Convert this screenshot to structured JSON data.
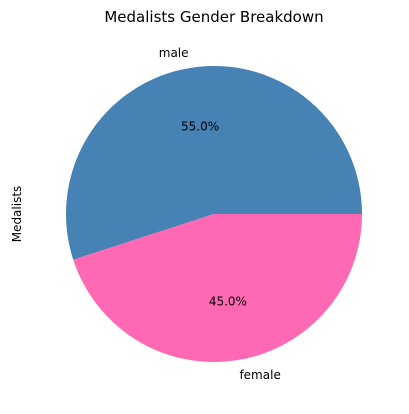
{
  "chart_data": {
    "type": "pie",
    "title": "Medalists Gender Breakdown",
    "ylabel": "Medalists",
    "slices": [
      {
        "label": "male",
        "value": 55.0,
        "pct_label": "55.0%",
        "color": "#4682B4"
      },
      {
        "label": "female",
        "value": 45.0,
        "pct_label": "45.0%",
        "color": "#FF69B4"
      }
    ],
    "start_angle_deg": 0,
    "direction": "counterclockwise"
  }
}
